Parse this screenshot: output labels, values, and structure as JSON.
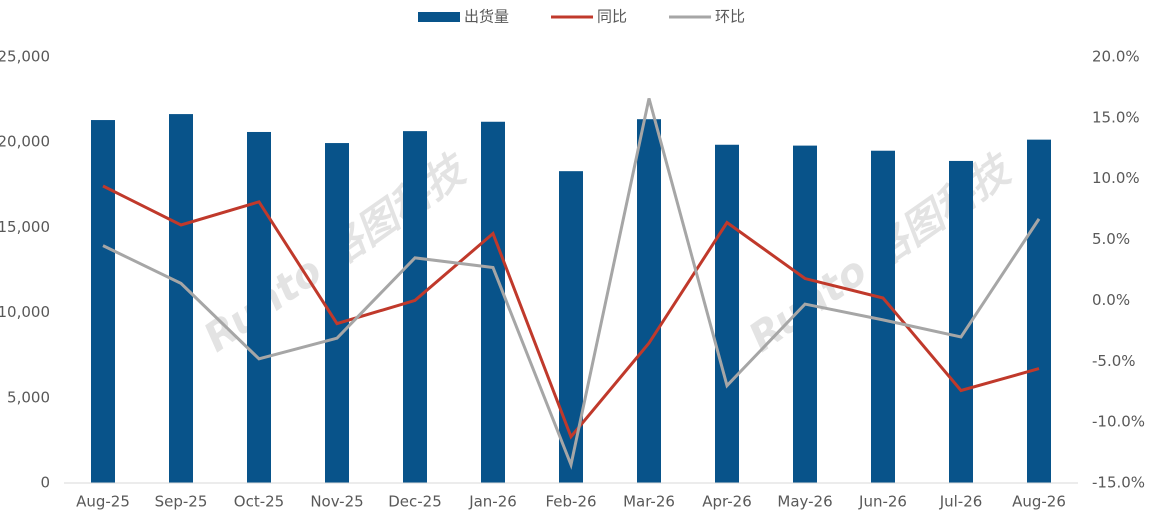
{
  "chart_data": {
    "type": "bar_line",
    "watermark": "Runto 洛图科技",
    "categories": [
      "Aug-25",
      "Sep-25",
      "Oct-25",
      "Nov-25",
      "Dec-25",
      "Jan-26",
      "Feb-26",
      "Mar-26",
      "Apr-26",
      "May-26",
      "Jun-26",
      "Jul-26",
      "Aug-26"
    ],
    "series": [
      {
        "name": "出货量",
        "color": "#08538a",
        "type": "bar",
        "values": [
          21300,
          21650,
          20600,
          19950,
          20650,
          21200,
          18300,
          21350,
          19850,
          19800,
          19500,
          18900,
          20150
        ]
      },
      {
        "name": "同比",
        "color": "#c0392b",
        "type": "line",
        "axis": "y2",
        "values": [
          9.4,
          6.2,
          8.1,
          -1.9,
          0.0,
          5.5,
          -11.2,
          -3.5,
          6.4,
          1.8,
          0.2,
          -7.4,
          -5.6
        ]
      },
      {
        "name": "环比",
        "color": "#a6a6a6",
        "type": "line",
        "axis": "y2",
        "values": [
          4.5,
          1.4,
          -4.8,
          -3.1,
          3.5,
          2.7,
          -13.5,
          16.6,
          -7.0,
          -0.3,
          -1.6,
          -3.0,
          6.7
        ]
      }
    ],
    "ylim": [
      0,
      25000
    ],
    "yticks": [
      0,
      {
        "value": 5000,
        "label": "5,000"
      },
      {
        "value": 10000,
        "label": "10,000"
      },
      {
        "value": 15000,
        "label": "15,000"
      },
      {
        "value": 20000,
        "label": "20,000"
      },
      {
        "value": 25000,
        "label": "25,000"
      }
    ],
    "y2lim": [
      -15,
      20
    ],
    "y2ticks": [
      {
        "value": -15,
        "label": "-15.0%"
      },
      {
        "value": -10,
        "label": "-10.0%"
      },
      {
        "value": -5,
        "label": "-5.0%"
      },
      {
        "value": 0,
        "label": "0.0%"
      },
      {
        "value": 5,
        "label": "5.0%"
      },
      {
        "value": 10,
        "label": "10.0%"
      },
      {
        "value": 15,
        "label": "15.0%"
      },
      {
        "value": 20,
        "label": "20.0%"
      }
    ],
    "grid": false,
    "legend": "top"
  }
}
